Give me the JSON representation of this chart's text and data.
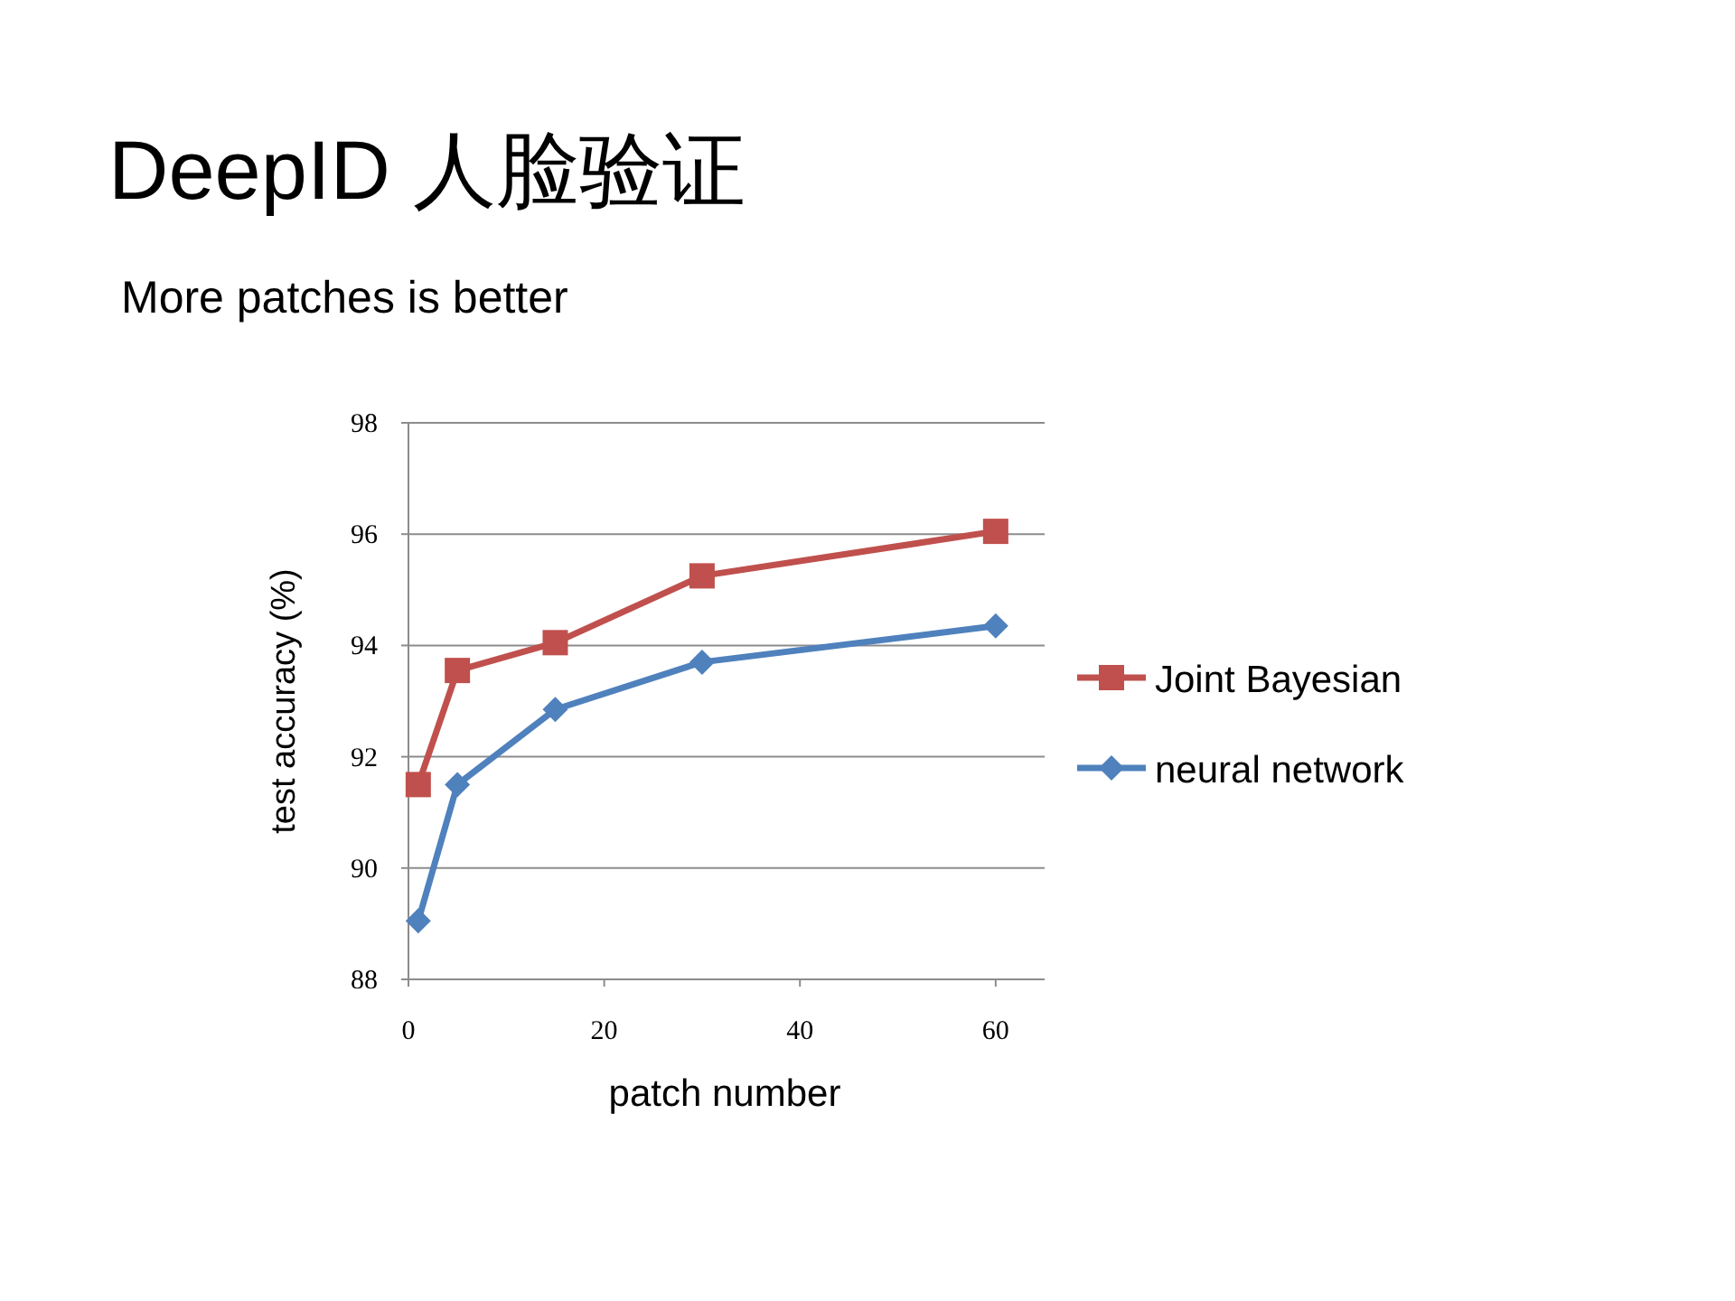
{
  "chart_data": {
    "type": "line",
    "title": "DeepID 人脸验证",
    "subtitle": "More patches is better",
    "xlabel": "patch number",
    "ylabel": "test accuracy (%)",
    "xlim": [
      0,
      65
    ],
    "xticks": [
      0,
      20,
      40,
      60
    ],
    "ylim": [
      88,
      98
    ],
    "yticks": [
      88,
      90,
      92,
      94,
      96,
      98
    ],
    "grid": "y",
    "legend": "right",
    "series": [
      {
        "name": "Joint Bayesian",
        "color": "#c0504d",
        "marker": "square",
        "x": [
          1,
          5,
          15,
          30,
          60
        ],
        "values": [
          91.5,
          93.55,
          94.05,
          95.25,
          96.05
        ]
      },
      {
        "name": "neural network",
        "color": "#4f81bd",
        "marker": "diamond",
        "x": [
          1,
          5,
          15,
          30,
          60
        ],
        "values": [
          89.05,
          91.5,
          92.85,
          93.7,
          94.35
        ]
      }
    ]
  }
}
